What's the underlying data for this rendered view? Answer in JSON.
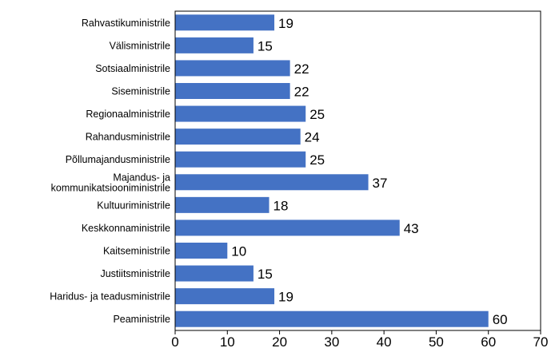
{
  "chart_data": {
    "type": "bar",
    "orientation": "horizontal",
    "categories": [
      "Rahvastikuministrile",
      "Välisministrile",
      "Sotsiaalministrile",
      "Siseministrile",
      "Regionaalministrile",
      "Rahandusministrile",
      "Põllumajandusministrile",
      "Majandus- ja\nkommunikatsiooniministrile",
      "Kultuuriministrile",
      "Keskkonnaministrile",
      "Kaitseministrile",
      "Justiitsministrile",
      "Haridus- ja teadusministrile",
      "Peaministrile"
    ],
    "values": [
      19,
      15,
      22,
      22,
      25,
      24,
      25,
      37,
      18,
      43,
      10,
      15,
      19,
      60
    ],
    "xlim": [
      0,
      70
    ],
    "xticks": [
      "0",
      "10",
      "20",
      "30",
      "40",
      "50",
      "60",
      "70"
    ],
    "bar_color": "#4472C4",
    "title": "",
    "xlabel": "",
    "ylabel": "",
    "grid": false,
    "data_labels": true
  }
}
